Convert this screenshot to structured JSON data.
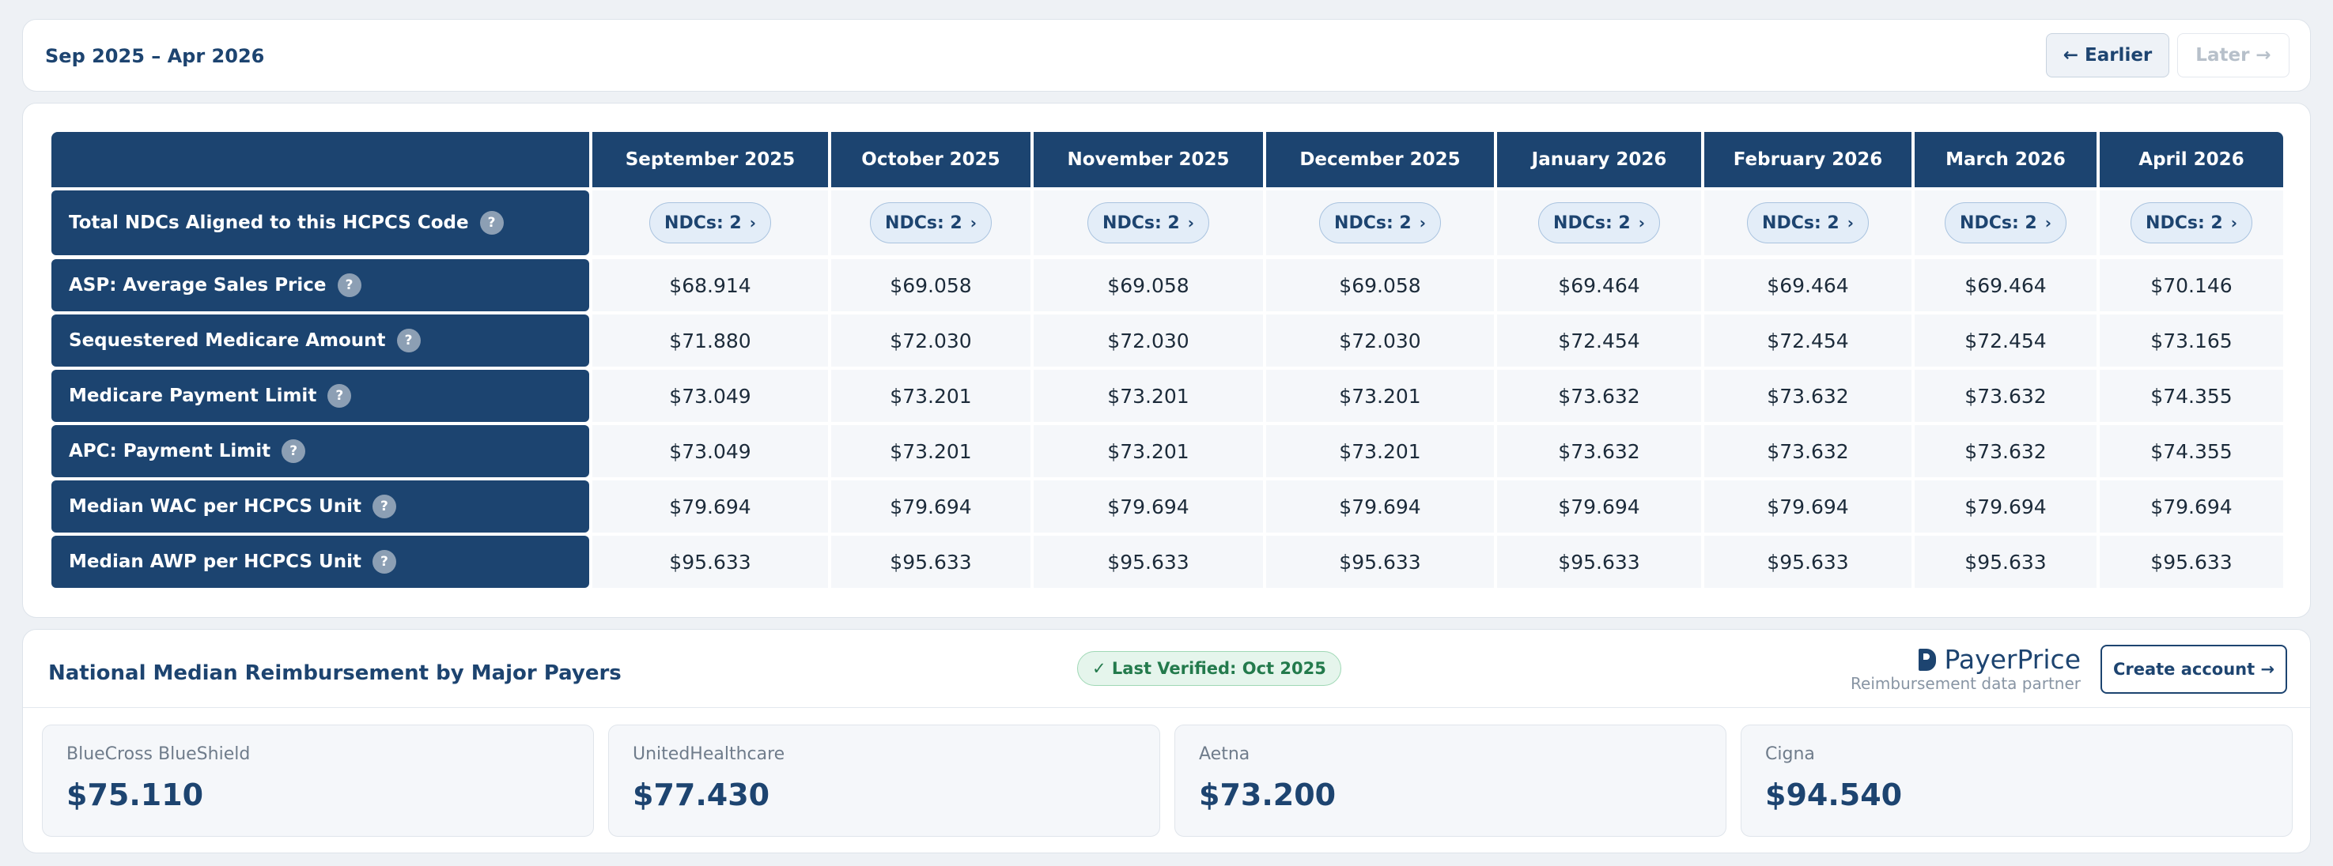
{
  "nav": {
    "range_label": "Sep 2025 – Apr 2026",
    "earlier_label": "← Earlier",
    "later_label": "Later →"
  },
  "table": {
    "months": [
      "September 2025",
      "October 2025",
      "November 2025",
      "December 2025",
      "January 2026",
      "February 2026",
      "March 2026",
      "April 2026"
    ],
    "ndc_row": {
      "label": "Total NDCs Aligned to this HCPCS Code",
      "pills": [
        "NDCs: 2",
        "NDCs: 2",
        "NDCs: 2",
        "NDCs: 2",
        "NDCs: 2",
        "NDCs: 2",
        "NDCs: 2",
        "NDCs: 2"
      ]
    },
    "rows": [
      {
        "label": "ASP: Average Sales Price",
        "values": [
          "$68.914",
          "$69.058",
          "$69.058",
          "$69.058",
          "$69.464",
          "$69.464",
          "$69.464",
          "$70.146"
        ]
      },
      {
        "label": "Sequestered Medicare Amount",
        "values": [
          "$71.880",
          "$72.030",
          "$72.030",
          "$72.030",
          "$72.454",
          "$72.454",
          "$72.454",
          "$73.165"
        ]
      },
      {
        "label": "Medicare Payment Limit",
        "values": [
          "$73.049",
          "$73.201",
          "$73.201",
          "$73.201",
          "$73.632",
          "$73.632",
          "$73.632",
          "$74.355"
        ]
      },
      {
        "label": "APC: Payment Limit",
        "values": [
          "$73.049",
          "$73.201",
          "$73.201",
          "$73.201",
          "$73.632",
          "$73.632",
          "$73.632",
          "$74.355"
        ]
      },
      {
        "label": "Median WAC per HCPCS Unit",
        "values": [
          "$79.694",
          "$79.694",
          "$79.694",
          "$79.694",
          "$79.694",
          "$79.694",
          "$79.694",
          "$79.694"
        ]
      },
      {
        "label": "Median AWP per HCPCS Unit",
        "values": [
          "$95.633",
          "$95.633",
          "$95.633",
          "$95.633",
          "$95.633",
          "$95.633",
          "$95.633",
          "$95.633"
        ]
      }
    ],
    "help_glyph": "?",
    "pill_chevron": "›"
  },
  "payers": {
    "title": "National Median Reimbursement by Major Payers",
    "verified": "✓ Last Verified: Oct 2025",
    "partner_name": "PayerPrice",
    "partner_sub": "Reimbursement data partner",
    "create_account": "Create account →",
    "items": [
      {
        "name": "BlueCross BlueShield",
        "value": "$75.110"
      },
      {
        "name": "UnitedHealthcare",
        "value": "$77.430"
      },
      {
        "name": "Aetna",
        "value": "$73.200"
      },
      {
        "name": "Cigna",
        "value": "$94.540"
      }
    ]
  },
  "colors": {
    "header_bg": "#1c4470",
    "accent": "#1d4470",
    "verified_green": "#237a4c"
  }
}
